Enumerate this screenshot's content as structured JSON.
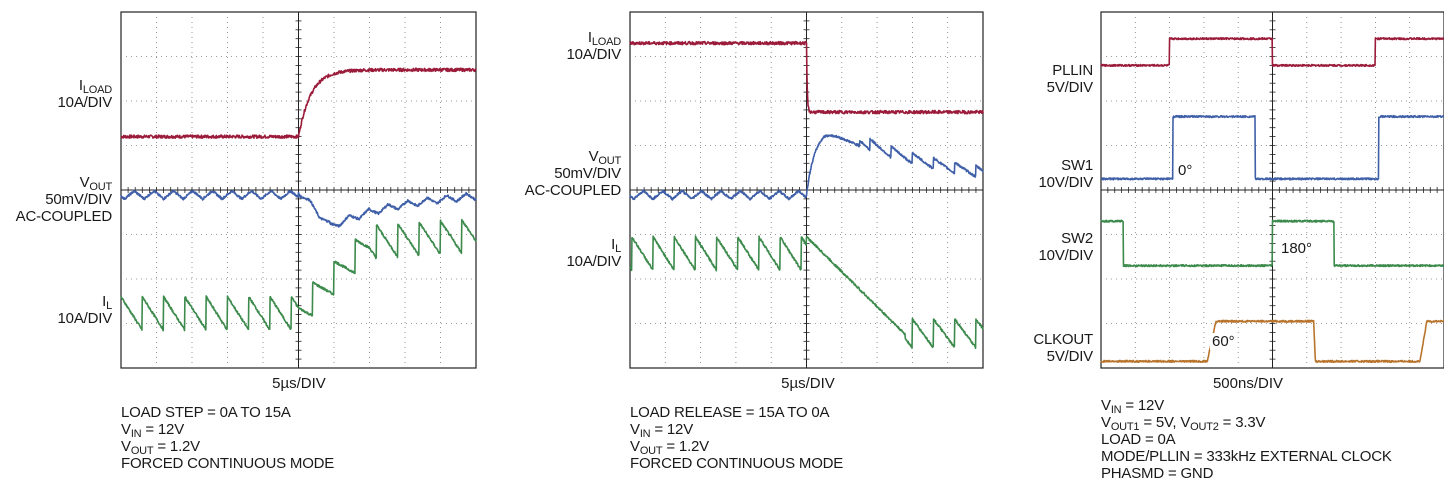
{
  "panels": [
    {
      "trace_labels": {
        "iload": {
          "main": "I",
          "sub": "LOAD",
          "scale": "10A/DIV"
        },
        "vout": {
          "main": "V",
          "sub": "OUT",
          "scale": "50mV/DIV",
          "extra": "AC-COUPLED"
        },
        "il": {
          "main": "I",
          "sub": "L",
          "scale": "10A/DIV"
        }
      },
      "timebase": "5µs/DIV",
      "notes": [
        {
          "pre": "LOAD STEP = 0A TO 15A",
          "sub": "",
          "post": ""
        },
        {
          "pre": "V",
          "sub": "IN",
          "post": " = 12V"
        },
        {
          "pre": "V",
          "sub": "OUT",
          "post": " = 1.2V"
        },
        {
          "pre": "FORCED CONTINUOUS MODE",
          "sub": "",
          "post": ""
        }
      ]
    },
    {
      "trace_labels": {
        "iload": {
          "main": "I",
          "sub": "LOAD",
          "scale": "10A/DIV"
        },
        "vout": {
          "main": "V",
          "sub": "OUT",
          "scale": "50mV/DIV",
          "extra": "AC-COUPLED"
        },
        "il": {
          "main": "I",
          "sub": "L",
          "scale": "10A/DIV"
        }
      },
      "timebase": "5µs/DIV",
      "notes": [
        {
          "pre": "LOAD RELEASE = 15A TO 0A",
          "sub": "",
          "post": ""
        },
        {
          "pre": "V",
          "sub": "IN",
          "post": " = 12V"
        },
        {
          "pre": "V",
          "sub": "OUT",
          "post": " = 1.2V"
        },
        {
          "pre": "FORCED CONTINUOUS MODE",
          "sub": "",
          "post": ""
        }
      ]
    },
    {
      "trace_labels": {
        "pllin": {
          "name": "PLLIN",
          "scale": "5V/DIV"
        },
        "sw1": {
          "name": "SW1",
          "scale": "10V/DIV"
        },
        "sw2": {
          "name": "SW2",
          "scale": "10V/DIV"
        },
        "clkout": {
          "name": "CLKOUT",
          "scale": "5V/DIV"
        }
      },
      "annotations": {
        "sw1_phase": "0°",
        "sw2_phase": "180°",
        "clkout_phase": "60°"
      },
      "timebase": "500ns/DIV",
      "notes": [
        {
          "pre": "V",
          "sub": "IN",
          "post": " = 12V"
        },
        {
          "pre": "V",
          "sub": "OUT1",
          "post": " = 5V, V",
          "sub2": "OUT2",
          "post2": " = 3.3V"
        },
        {
          "pre": "LOAD = 0A",
          "sub": "",
          "post": ""
        },
        {
          "pre": "MODE/PLLIN = 333kHz EXTERNAL CLOCK",
          "sub": "",
          "post": ""
        },
        {
          "pre": "PHASMD = GND",
          "sub": "",
          "post": ""
        }
      ]
    }
  ],
  "colors": {
    "iload": "#9b1b3a",
    "vout": "#3f5fa8",
    "il": "#3c8a4c",
    "pllin": "#9b1b3a",
    "sw1": "#3f5fa8",
    "sw2": "#3c8a4c",
    "clkout": "#b8742c",
    "grid": "#7a7a7a"
  },
  "chart_data": [
    {
      "type": "line",
      "x_units": "divisions (5µs/DIV)",
      "xlim": [
        0,
        10
      ],
      "ylim": [
        0,
        8
      ],
      "grid": true,
      "series": [
        {
          "values": [
            [
              0,
              5.2
            ],
            [
              4.7,
              5.2
            ],
            [
              5.0,
              5.8
            ],
            [
              5.5,
              6.5
            ],
            [
              6.5,
              6.7
            ],
            [
              10,
              6.7
            ]
          ]
        },
        {
          "values": [
            [
              0,
              3.9
            ],
            [
              5.0,
              3.9
            ],
            [
              5.8,
              3.1
            ],
            [
              7.0,
              3.4
            ],
            [
              8.5,
              3.7
            ],
            [
              10,
              3.9
            ]
          ]
        },
        {
          "values": [
            [
              0,
              1.2
            ],
            [
              5.0,
              1.0
            ],
            [
              6.5,
              2.6
            ],
            [
              10,
              3.1
            ]
          ]
        }
      ]
    },
    {
      "type": "line",
      "x_units": "divisions (5µs/DIV)",
      "xlim": [
        0,
        10
      ],
      "ylim": [
        0,
        8
      ],
      "grid": true,
      "series": [
        {
          "values": [
            [
              0,
              7.3
            ],
            [
              5.0,
              7.3
            ],
            [
              5.1,
              5.7
            ],
            [
              10,
              5.8
            ]
          ]
        },
        {
          "values": [
            [
              0,
              3.8
            ],
            [
              5.0,
              3.8
            ],
            [
              5.4,
              5.3
            ],
            [
              7.0,
              4.6
            ],
            [
              10,
              3.9
            ]
          ]
        },
        {
          "values": [
            [
              0,
              2.5
            ],
            [
              5.0,
              2.6
            ],
            [
              7.0,
              0.9
            ],
            [
              10,
              0.4
            ]
          ]
        }
      ]
    },
    {
      "type": "line",
      "x_units": "divisions (500ns/DIV)",
      "xlim": [
        0,
        10
      ],
      "ylim": [
        0,
        8
      ],
      "grid": true,
      "series": [
        {
          "values": [
            [
              0,
              6.8
            ],
            [
              2.0,
              6.8
            ],
            [
              2.1,
              7.4
            ],
            [
              5.0,
              7.4
            ],
            [
              5.1,
              6.8
            ],
            [
              7.8,
              6.8
            ],
            [
              7.9,
              7.4
            ],
            [
              10,
              7.4
            ]
          ]
        },
        {
          "values": [
            [
              0,
              4.2
            ],
            [
              2.1,
              4.2
            ],
            [
              2.2,
              5.6
            ],
            [
              4.4,
              5.6
            ],
            [
              4.5,
              4.2
            ],
            [
              8.0,
              4.2
            ],
            [
              8.1,
              5.6
            ],
            [
              10,
              5.6
            ]
          ]
        },
        {
          "values": [
            [
              0,
              3.3
            ],
            [
              0.6,
              3.3
            ],
            [
              0.7,
              2.3
            ],
            [
              5.0,
              2.3
            ],
            [
              5.1,
              3.3
            ],
            [
              6.7,
              3.3
            ],
            [
              6.8,
              2.3
            ],
            [
              10,
              2.3
            ]
          ]
        },
        {
          "values": [
            [
              0,
              0.1
            ],
            [
              3.2,
              0.1
            ],
            [
              3.4,
              1.0
            ],
            [
              6.1,
              1.0
            ],
            [
              6.2,
              0.1
            ],
            [
              9.3,
              0.1
            ],
            [
              9.4,
              1.0
            ],
            [
              10,
              1.0
            ]
          ]
        }
      ]
    }
  ]
}
